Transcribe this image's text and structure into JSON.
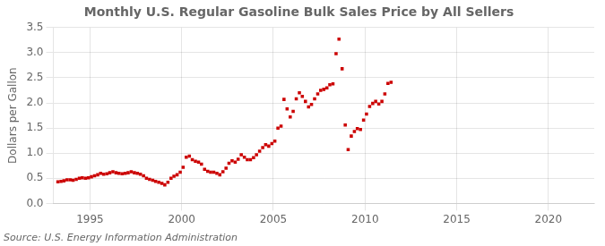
{
  "chart_data": {
    "type": "scatter",
    "title": "Monthly U.S. Regular Gasoline Bulk Sales Price by All Sellers",
    "ylabel": "Dollars per Gallon",
    "annotation": "Source: U.S. Energy Information Administration",
    "color": "#cc0000",
    "marker": "square",
    "grid": true,
    "xlim": [
      1993.0,
      2022.5
    ],
    "ylim": [
      0.0,
      3.5
    ],
    "xticks": [
      1995,
      2000,
      2005,
      2010,
      2015,
      2020
    ],
    "yticks": [
      {
        "value": 0.0,
        "label": "0.0"
      },
      0.5,
      {
        "value": 1.0,
        "label": "1.0"
      },
      1.5,
      {
        "value": 2.0,
        "label": "2.0"
      },
      2.5,
      {
        "value": 3.0,
        "label": "3.0"
      },
      3.5
    ],
    "x": [
      1993.25,
      1993.42,
      1993.58,
      1993.75,
      1993.92,
      1994.08,
      1994.25,
      1994.42,
      1994.58,
      1994.75,
      1994.92,
      1995.08,
      1995.25,
      1995.42,
      1995.58,
      1995.75,
      1995.92,
      1996.08,
      1996.25,
      1996.42,
      1996.58,
      1996.75,
      1996.92,
      1997.08,
      1997.25,
      1997.42,
      1997.58,
      1997.75,
      1997.92,
      1998.08,
      1998.25,
      1998.42,
      1998.58,
      1998.75,
      1998.92,
      1999.08,
      1999.25,
      1999.42,
      1999.58,
      1999.75,
      1999.92,
      2000.08,
      2000.25,
      2000.42,
      2000.58,
      2000.75,
      2000.92,
      2001.08,
      2001.25,
      2001.42,
      2001.58,
      2001.75,
      2001.92,
      2002.08,
      2002.25,
      2002.42,
      2002.58,
      2002.75,
      2002.92,
      2003.08,
      2003.25,
      2003.42,
      2003.58,
      2003.75,
      2003.92,
      2004.08,
      2004.25,
      2004.42,
      2004.58,
      2004.75,
      2004.92,
      2005.08,
      2005.25,
      2005.42,
      2005.58,
      2005.75,
      2005.92,
      2006.08,
      2006.25,
      2006.42,
      2006.58,
      2006.75,
      2006.92,
      2007.08,
      2007.25,
      2007.42,
      2007.58,
      2007.75,
      2007.92,
      2008.08,
      2008.25,
      2008.42,
      2008.58,
      2008.75,
      2008.92,
      2009.08,
      2009.25,
      2009.42,
      2009.58,
      2009.75,
      2009.92,
      2010.08,
      2010.25,
      2010.42,
      2010.58,
      2010.75,
      2010.92,
      2011.08,
      2011.25,
      2011.42
    ],
    "values": [
      0.43,
      0.44,
      0.45,
      0.47,
      0.47,
      0.46,
      0.48,
      0.5,
      0.51,
      0.5,
      0.51,
      0.53,
      0.55,
      0.57,
      0.6,
      0.58,
      0.59,
      0.61,
      0.63,
      0.61,
      0.6,
      0.59,
      0.6,
      0.61,
      0.63,
      0.61,
      0.6,
      0.58,
      0.55,
      0.5,
      0.48,
      0.46,
      0.44,
      0.42,
      0.4,
      0.37,
      0.42,
      0.5,
      0.54,
      0.57,
      0.62,
      0.72,
      0.92,
      0.94,
      0.87,
      0.84,
      0.82,
      0.78,
      0.68,
      0.64,
      0.62,
      0.62,
      0.6,
      0.57,
      0.63,
      0.7,
      0.8,
      0.85,
      0.82,
      0.88,
      0.97,
      0.92,
      0.87,
      0.87,
      0.91,
      0.97,
      1.04,
      1.11,
      1.17,
      1.14,
      1.19,
      1.24,
      1.5,
      1.54,
      2.07,
      1.88,
      1.72,
      1.83,
      2.08,
      2.2,
      2.13,
      2.03,
      1.92,
      1.97,
      2.08,
      2.18,
      2.25,
      2.27,
      2.3,
      2.36,
      2.38,
      2.98,
      3.27,
      2.68,
      1.56,
      1.07,
      1.34,
      1.43,
      1.49,
      1.47,
      1.66,
      1.78,
      1.93,
      1.99,
      2.03,
      1.98,
      2.03,
      2.18,
      2.39,
      2.41
    ]
  }
}
